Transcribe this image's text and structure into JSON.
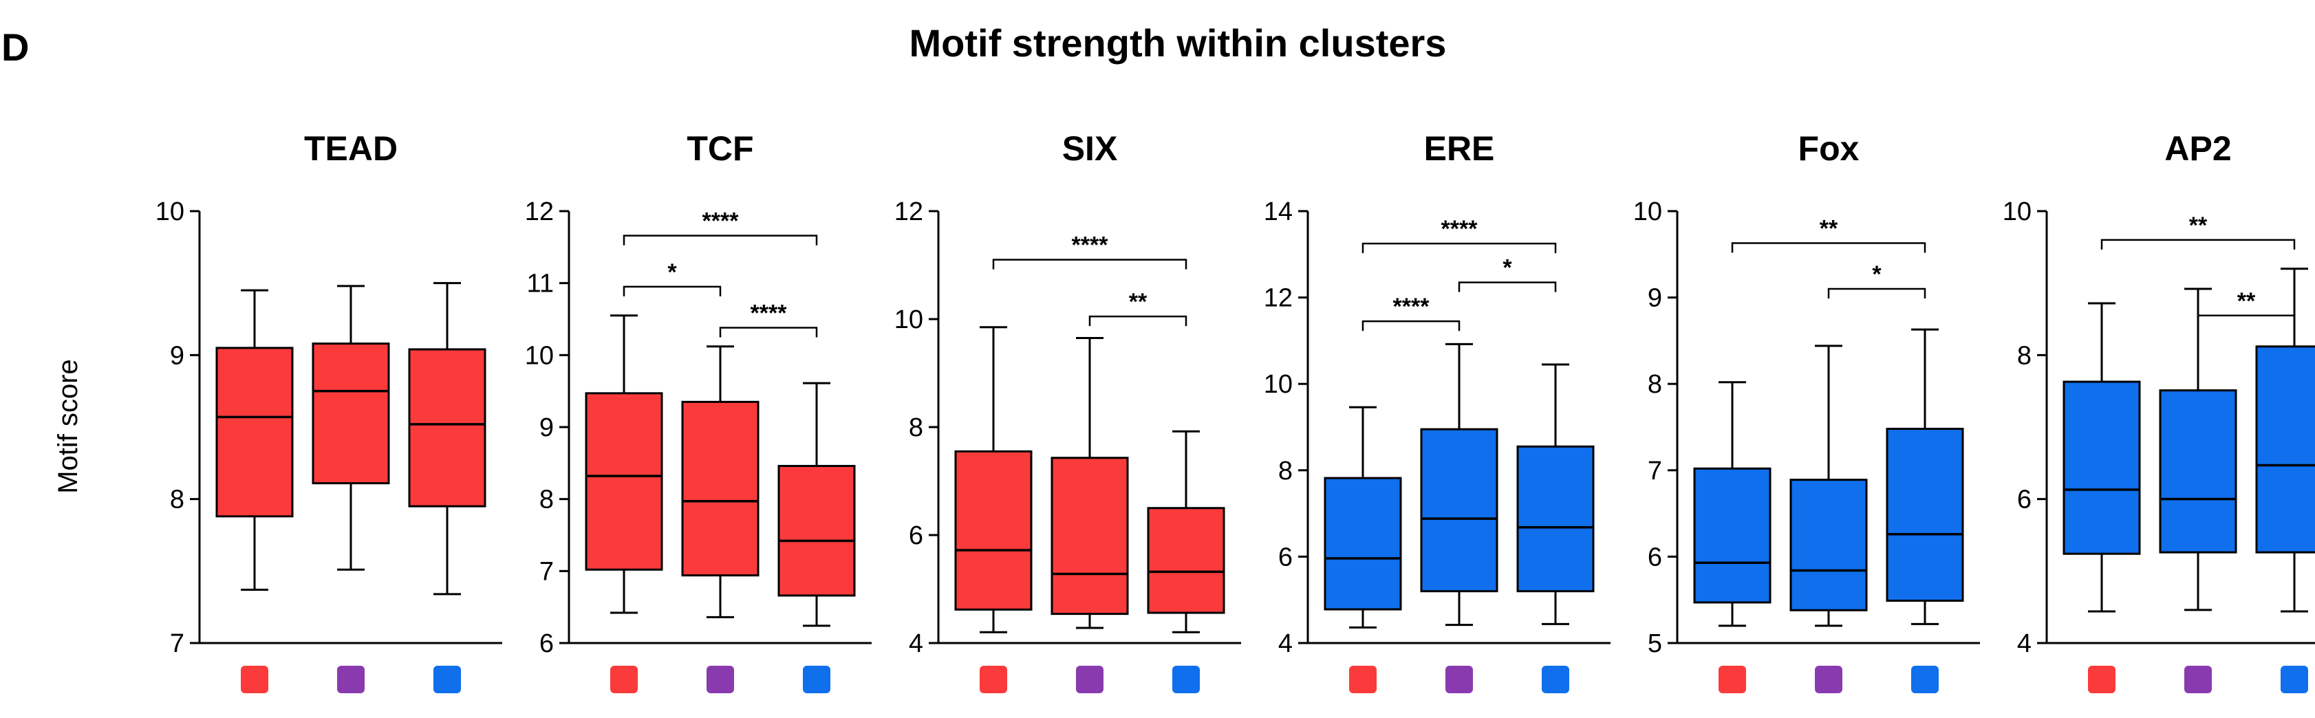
{
  "panel_letter": "D",
  "colors": {
    "red": "#fb3b3b",
    "purple": "#8a3aaf",
    "blue": "#0f6fec"
  },
  "chart_data": {
    "type": "box",
    "title": "Motif strength within clusters",
    "ylabel": "Motif score",
    "groups": [
      "red",
      "purple",
      "blue"
    ],
    "panels": [
      {
        "title": "TEAD",
        "ylim": [
          7,
          10
        ],
        "ticks": [
          7,
          8,
          9,
          10
        ],
        "fill": "red",
        "boxes": [
          {
            "min": 7.37,
            "q1": 7.88,
            "median": 8.57,
            "q3": 9.05,
            "max": 9.45
          },
          {
            "min": 7.51,
            "q1": 8.11,
            "median": 8.75,
            "q3": 9.08,
            "max": 9.48
          },
          {
            "min": 7.34,
            "q1": 7.95,
            "median": 8.52,
            "q3": 9.04,
            "max": 9.5
          }
        ],
        "significance": []
      },
      {
        "title": "TCF",
        "ylim": [
          6,
          12
        ],
        "ticks": [
          6,
          7,
          8,
          9,
          10,
          11,
          12
        ],
        "fill": "red",
        "boxes": [
          {
            "min": 6.42,
            "q1": 7.02,
            "median": 8.32,
            "q3": 9.47,
            "max": 10.55
          },
          {
            "min": 6.36,
            "q1": 6.94,
            "median": 7.97,
            "q3": 9.35,
            "max": 10.12
          },
          {
            "min": 6.24,
            "q1": 6.66,
            "median": 7.42,
            "q3": 8.46,
            "max": 9.61
          }
        ],
        "significance": [
          {
            "from": 0,
            "to": 2,
            "y": 11.66,
            "label": "****"
          },
          {
            "from": 0,
            "to": 1,
            "y": 10.95,
            "label": "*"
          },
          {
            "from": 1,
            "to": 2,
            "y": 10.38,
            "label": "****"
          }
        ]
      },
      {
        "title": "SIX",
        "ylim": [
          4,
          12
        ],
        "ticks": [
          4,
          6,
          8,
          10,
          12
        ],
        "fill": "red",
        "boxes": [
          {
            "min": 4.2,
            "q1": 4.62,
            "median": 5.72,
            "q3": 7.55,
            "max": 9.85
          },
          {
            "min": 4.28,
            "q1": 4.54,
            "median": 5.28,
            "q3": 7.43,
            "max": 9.65
          },
          {
            "min": 4.2,
            "q1": 4.56,
            "median": 5.32,
            "q3": 6.5,
            "max": 7.92
          }
        ],
        "significance": [
          {
            "from": 0,
            "to": 2,
            "y": 11.1,
            "label": "****"
          },
          {
            "from": 1,
            "to": 2,
            "y": 10.05,
            "label": "**"
          }
        ]
      },
      {
        "title": "ERE",
        "ylim": [
          4,
          14
        ],
        "ticks": [
          4,
          6,
          8,
          10,
          12,
          14
        ],
        "fill": "blue",
        "boxes": [
          {
            "min": 4.36,
            "q1": 4.78,
            "median": 5.96,
            "q3": 7.82,
            "max": 9.46
          },
          {
            "min": 4.42,
            "q1": 5.2,
            "median": 6.88,
            "q3": 8.95,
            "max": 10.92
          },
          {
            "min": 4.44,
            "q1": 5.2,
            "median": 6.68,
            "q3": 8.55,
            "max": 10.45
          }
        ],
        "significance": [
          {
            "from": 0,
            "to": 2,
            "y": 13.25,
            "label": "****"
          },
          {
            "from": 1,
            "to": 2,
            "y": 12.35,
            "label": "*"
          },
          {
            "from": 0,
            "to": 1,
            "y": 11.45,
            "label": "****"
          }
        ]
      },
      {
        "title": "Fox",
        "ylim": [
          5,
          10
        ],
        "ticks": [
          5,
          6,
          7,
          8,
          9,
          10
        ],
        "fill": "blue",
        "boxes": [
          {
            "min": 5.2,
            "q1": 5.47,
            "median": 5.93,
            "q3": 7.02,
            "max": 8.02
          },
          {
            "min": 5.2,
            "q1": 5.38,
            "median": 5.84,
            "q3": 6.89,
            "max": 8.44
          },
          {
            "min": 5.22,
            "q1": 5.49,
            "median": 6.26,
            "q3": 7.48,
            "max": 8.63
          }
        ],
        "significance": [
          {
            "from": 0,
            "to": 2,
            "y": 9.63,
            "label": "**"
          },
          {
            "from": 1,
            "to": 2,
            "y": 9.1,
            "label": "*"
          }
        ]
      },
      {
        "title": "AP2",
        "ylim": [
          4,
          10
        ],
        "ticks": [
          4,
          6,
          8,
          10
        ],
        "fill": "blue",
        "boxes": [
          {
            "min": 4.44,
            "q1": 5.24,
            "median": 6.13,
            "q3": 7.63,
            "max": 8.72
          },
          {
            "min": 4.46,
            "q1": 5.26,
            "median": 6.0,
            "q3": 7.51,
            "max": 8.92
          },
          {
            "min": 4.44,
            "q1": 5.26,
            "median": 6.47,
            "q3": 8.12,
            "max": 9.2
          }
        ],
        "significance": [
          {
            "from": 0,
            "to": 2,
            "y": 9.6,
            "label": "**"
          },
          {
            "from": 1,
            "to": 2,
            "y": 8.55,
            "label": "**"
          }
        ]
      }
    ]
  }
}
